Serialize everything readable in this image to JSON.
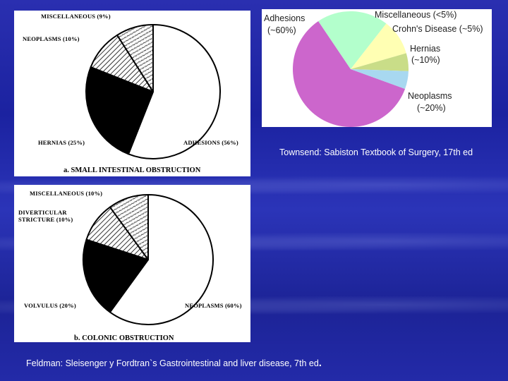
{
  "chart_data": [
    {
      "type": "pie",
      "caption": "a. SMALL INTESTINAL OBSTRUCTION",
      "slices": [
        {
          "label": "ADHESIONS (56%)",
          "value": 56,
          "fill": "white"
        },
        {
          "label": "HERNIAS (25%)",
          "value": 25,
          "fill": "black"
        },
        {
          "label": "NEOPLASMS (10%)",
          "value": 10,
          "fill": "hatch"
        },
        {
          "label": "MISCELLANEOUS (9%)",
          "value": 9,
          "fill": "dots"
        }
      ]
    },
    {
      "type": "pie",
      "caption": "b. COLONIC OBSTRUCTION",
      "slices": [
        {
          "label": "NEOPLASMS (60%)",
          "value": 60,
          "fill": "white"
        },
        {
          "label": "VOLVULUS (20%)",
          "value": 20,
          "fill": "black"
        },
        {
          "label": "DIVERTICULAR STRICTURE (10%)",
          "label_lines": [
            "DIVERTICULAR",
            "STRICTURE (10%)"
          ],
          "value": 10,
          "fill": "hatch"
        },
        {
          "label": "MISCELLANEOUS (10%)",
          "value": 10,
          "fill": "dots"
        }
      ]
    },
    {
      "type": "pie",
      "slices": [
        {
          "label": "Adhesions (~60%)",
          "label_lines": [
            "Adhesions",
            "(~60%)"
          ],
          "value": 60,
          "color": "#cc66cc"
        },
        {
          "label": "Neoplasms (~20%)",
          "label_lines": [
            "Neoplasms",
            "(~20%)"
          ],
          "value": 20,
          "color": "#b3ffcc"
        },
        {
          "label": "Hernias (~10%)",
          "label_lines": [
            "Hernias",
            "(~10%)"
          ],
          "value": 10,
          "color": "#ffffb3"
        },
        {
          "label": "Crohn's Disease (~5%)",
          "value": 5,
          "color": "#c9dd88"
        },
        {
          "label": "Miscellaneous (<5%)",
          "value": 5,
          "color": "#a8d8f0"
        }
      ]
    }
  ],
  "captions": {
    "townsend": "Townsend: Sabiston Textbook of Surgery, 17th ed",
    "feldman": "Feldman: Sleisenger y Fordtran`s Gastrointestinal and liver disease, 7th ed",
    "feldman_period": "."
  }
}
